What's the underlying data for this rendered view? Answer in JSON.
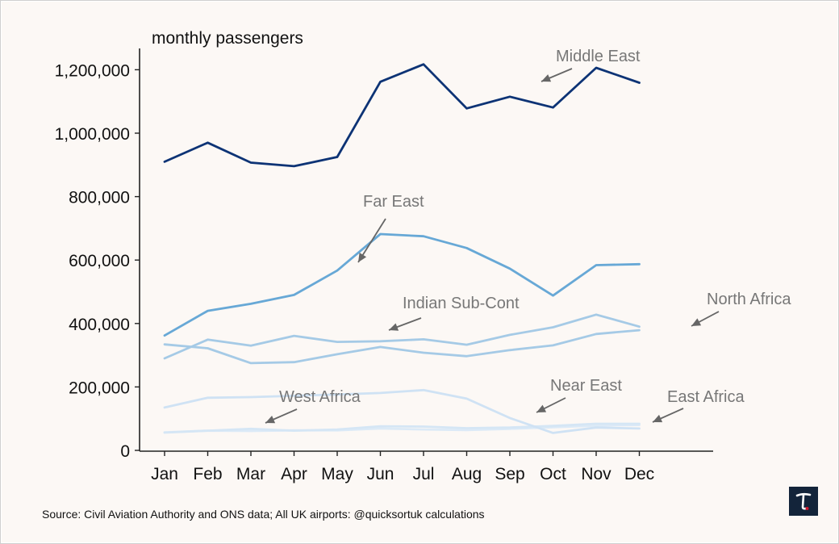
{
  "chart_data": {
    "type": "line",
    "title": "monthly passengers",
    "xlabel": "",
    "ylabel": "monthly passengers",
    "ylim": [
      0,
      1275000
    ],
    "grid": false,
    "categories": [
      "Jan",
      "Feb",
      "Mar",
      "Apr",
      "May",
      "Jun",
      "Jul",
      "Aug",
      "Sep",
      "Oct",
      "Nov",
      "Dec"
    ],
    "yticks": [
      0,
      200000,
      400000,
      600000,
      800000,
      1000000,
      1200000
    ],
    "ytick_labels": [
      "0",
      "200,000",
      "400,000",
      "600,000",
      "800,000",
      "1,000,000",
      "1,200,000"
    ],
    "series": [
      {
        "name": "Middle East",
        "color": "#0d3375",
        "values": [
          910000,
          970000,
          907000,
          896000,
          925000,
          1162000,
          1217000,
          1078000,
          1115000,
          1081000,
          1206000,
          1159000
        ]
      },
      {
        "name": "Far East",
        "color": "#67a8d6",
        "values": [
          362000,
          440000,
          462000,
          490000,
          567000,
          682000,
          675000,
          638000,
          573000,
          488000,
          584000,
          587000
        ]
      },
      {
        "name": "North Africa",
        "color": "#a5cae6",
        "values": [
          290000,
          349000,
          330000,
          361000,
          342000,
          344000,
          350000,
          333000,
          364000,
          388000,
          428000,
          390000
        ]
      },
      {
        "name": "Indian Sub-Cont",
        "color": "#a5cae6",
        "values": [
          334000,
          322000,
          275000,
          278000,
          303000,
          326000,
          308000,
          297000,
          316000,
          331000,
          367000,
          379000
        ]
      },
      {
        "name": "West Africa",
        "color": "#cfe2f4",
        "values": [
          135000,
          166000,
          168000,
          172000,
          176000,
          181000,
          190000,
          163000,
          102000,
          55000,
          72000,
          69000
        ]
      },
      {
        "name": "Near East",
        "color": "#d5e6f5",
        "values": [
          56000,
          62000,
          68000,
          62000,
          66000,
          76000,
          75000,
          70000,
          72000,
          77000,
          84000,
          84000
        ]
      },
      {
        "name": "East Africa",
        "color": "#dceaf7",
        "values": [
          57000,
          62000,
          61000,
          63000,
          63000,
          69000,
          66000,
          64000,
          68000,
          73000,
          78000,
          80000
        ]
      }
    ],
    "annotations": [
      {
        "text": "Middle East",
        "series": "Middle East"
      },
      {
        "text": "Far East",
        "series": "Far East"
      },
      {
        "text": "Indian Sub-Cont",
        "series": "Indian Sub-Cont"
      },
      {
        "text": "North Africa",
        "series": "North Africa"
      },
      {
        "text": "West Africa",
        "series": "West Africa"
      },
      {
        "text": "Near East",
        "series": "Near East"
      },
      {
        "text": "East Africa",
        "series": "East Africa"
      }
    ]
  },
  "source": "Source: Civil Aviation Authority and ONS data; All UK airports: @quicksortuk calculations",
  "logo": {
    "letter": "T",
    "background": "#13243a",
    "accent": "#d0142c"
  }
}
